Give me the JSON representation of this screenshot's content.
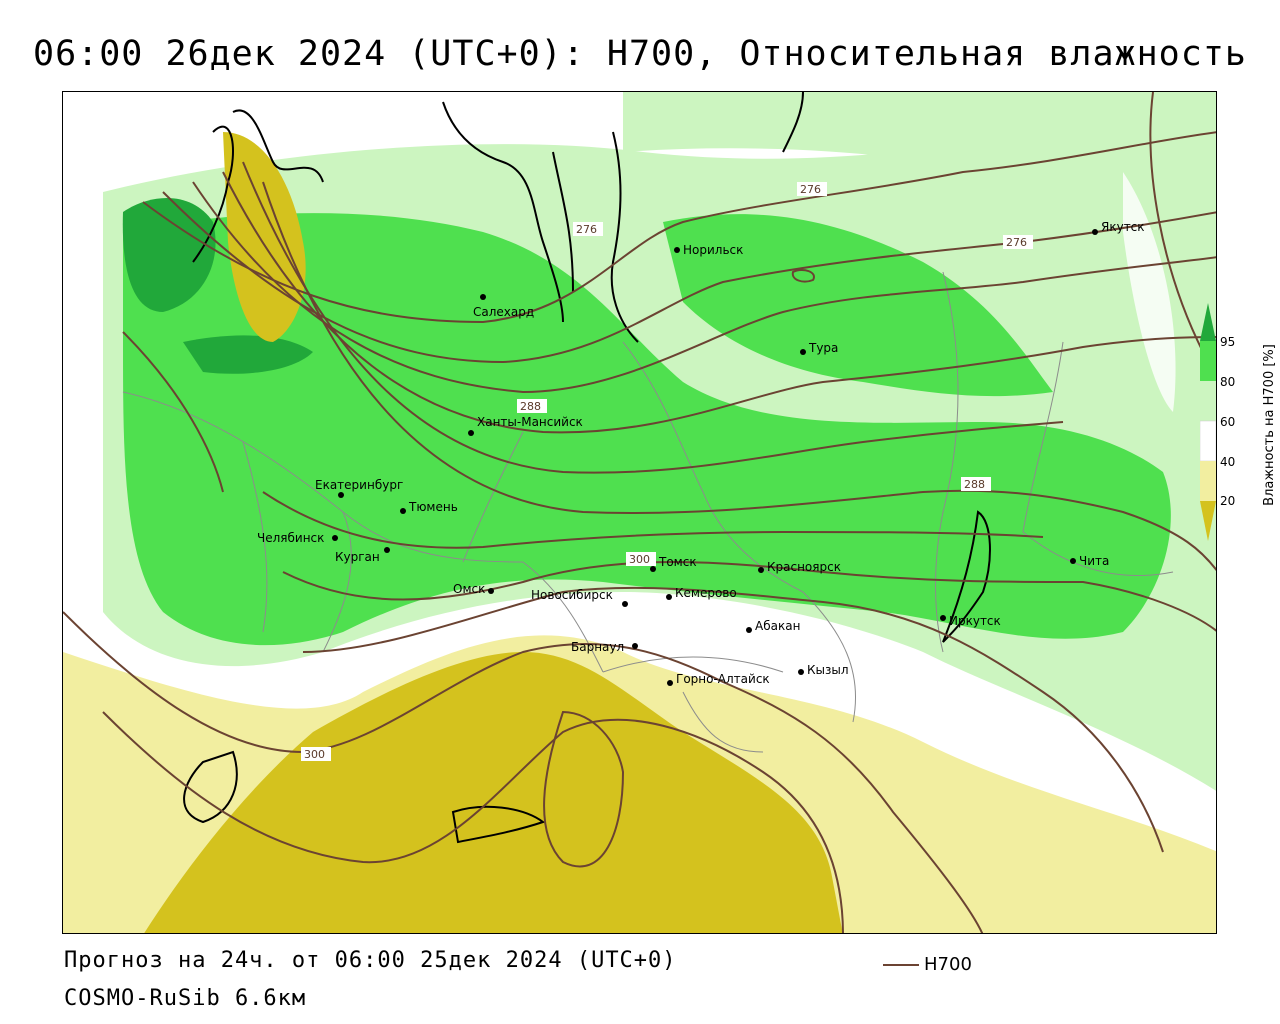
{
  "title": "06:00 26дек 2024 (UTC+0): H700, Относительная влажность",
  "footer": {
    "forecast": "Прогноз на 24ч. от 06:00 25дек 2024 (UTC+0)",
    "model": "COSMO-RuSib 6.6км",
    "line_legend": "H700"
  },
  "colors": {
    "very_dry": "#d4c21e",
    "dry": "#f2eea0",
    "light_green": "#ccf5c0",
    "green": "#4fe04f",
    "dark_green": "#21a83a",
    "contour": "#6b4332",
    "border": "#8c8c8c"
  },
  "humidity_legend": {
    "title": "Влажность на H700 [%]",
    "ticks": [
      "95",
      "80",
      "60",
      "40",
      "20"
    ]
  },
  "contour_labels": [
    "276",
    "276",
    "276",
    "288",
    "288",
    "300",
    "300"
  ],
  "cities": [
    {
      "name": "Норильск"
    },
    {
      "name": "Якутск"
    },
    {
      "name": "Салехард"
    },
    {
      "name": "Тура"
    },
    {
      "name": "Ханты-Мансийск"
    },
    {
      "name": "Екатеринбург"
    },
    {
      "name": "Тюмень"
    },
    {
      "name": "Челябинск"
    },
    {
      "name": "Курган"
    },
    {
      "name": "Омск"
    },
    {
      "name": "Новосибирск"
    },
    {
      "name": "Томск"
    },
    {
      "name": "Кемерово"
    },
    {
      "name": "Красноярск"
    },
    {
      "name": "Абакан"
    },
    {
      "name": "Барнаул"
    },
    {
      "name": "Горно-Алтайск"
    },
    {
      "name": "Кызыл"
    },
    {
      "name": "Иркутск"
    },
    {
      "name": "Чита"
    }
  ]
}
